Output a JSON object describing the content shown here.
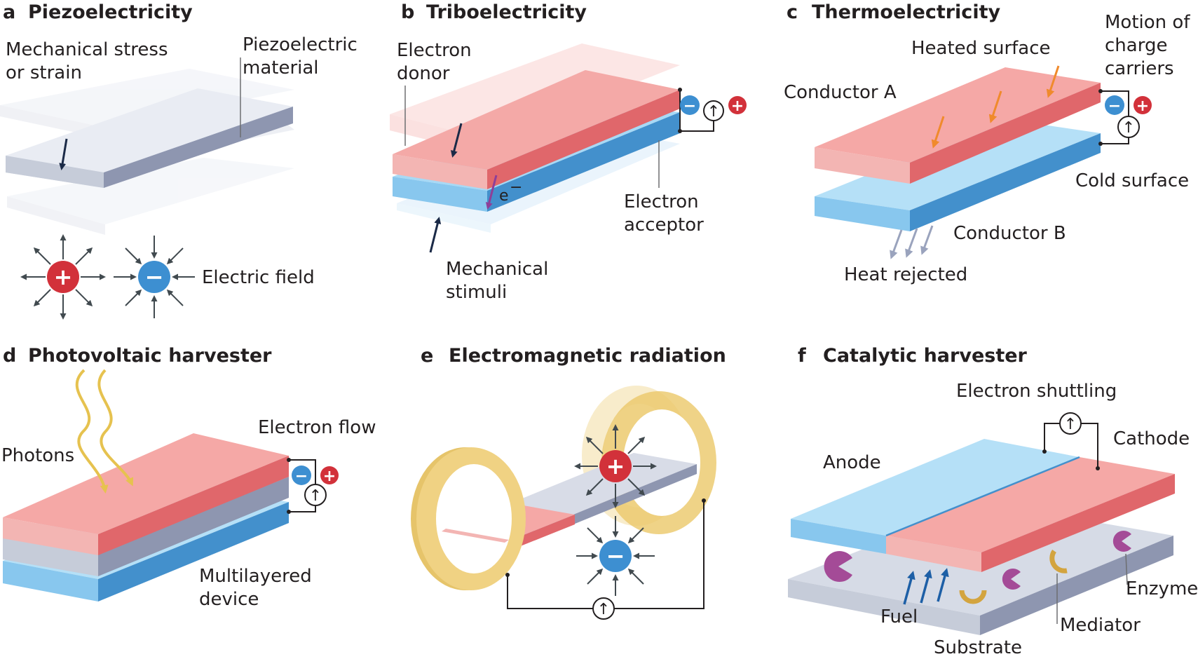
{
  "panels": {
    "a": {
      "letter": "a",
      "title": "Piezoelectricity",
      "stress_l1": "Mechanical stress",
      "stress_l2": "or strain",
      "material_l1": "Piezoelectric",
      "material_l2": "material",
      "field_label": "Electric field"
    },
    "b": {
      "letter": "b",
      "title": "Triboelectricity",
      "donor_l1": "Electron",
      "donor_l2": "donor",
      "electron": "e",
      "electron_sup": "−",
      "acceptor_l1": "Electron",
      "acceptor_l2": "acceptor",
      "stimuli_l1": "Mechanical",
      "stimuli_l2": "stimuli"
    },
    "c": {
      "letter": "c",
      "title": "Thermoelectricity",
      "heated": "Heated surface",
      "motion_l1": "Motion of",
      "motion_l2": "charge",
      "motion_l3": "carriers",
      "cond_a": "Conductor A",
      "cold": "Cold surface",
      "cond_b": "Conductor B",
      "heat_rejected": "Heat rejected"
    },
    "d": {
      "letter": "d",
      "title": "Photovoltaic harvester",
      "photons": "Photons",
      "electron_flow": "Electron flow",
      "device_l1": "Multilayered",
      "device_l2": "device"
    },
    "e": {
      "letter": "e",
      "title": "Electromagnetic radiation"
    },
    "f": {
      "letter": "f",
      "title": "Catalytic harvester",
      "shuttling": "Electron shuttling",
      "anode": "Anode",
      "cathode": "Cathode",
      "enzyme": "Enzyme",
      "fuel": "Fuel",
      "mediator": "Mediator",
      "substrate": "Substrate"
    }
  },
  "symbols": {
    "plus": "+",
    "minus": "−",
    "current": "↑"
  },
  "colors": {
    "positive": "#d2313a",
    "negative": "#3d8fd1",
    "pink_top": "#f5a8a6",
    "pink_front": "#f3b5b3",
    "pink_side": "#e0676b",
    "blue_top": "#b5e0f7",
    "blue_front": "#88c7ee",
    "blue_side": "#4390cc",
    "grey_top": "#d6dbe6",
    "grey_side": "#8e96b0",
    "gold": "#ebc869",
    "heat_arrow": "#f08a2c",
    "cold_arrow": "#9aa3bd",
    "fuel_arrow": "#1d5fa6",
    "enzyme": "#a44b97",
    "mediator": "#d3a43f"
  }
}
